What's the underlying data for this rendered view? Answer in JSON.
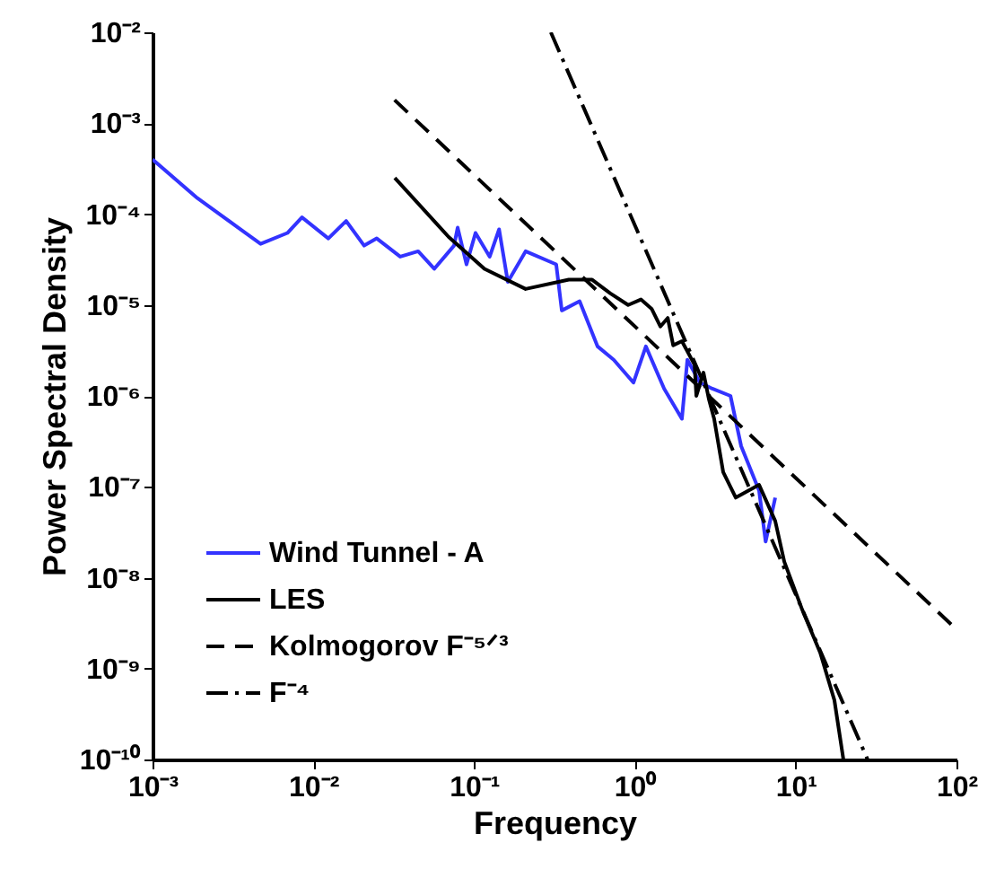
{
  "chart_data": {
    "type": "line",
    "xlabel": "Frequency",
    "ylabel": "Power Spectral Density",
    "log": "xy",
    "grid": false,
    "legend": "bottom left",
    "marker": "none",
    "xlim": [
      0.001,
      100
    ],
    "ylim": [
      1e-10,
      0.01
    ],
    "xticks": [
      {
        "value": 0.001,
        "label": "10⁻³"
      },
      {
        "value": 0.01,
        "label": "10⁻²"
      },
      {
        "value": 0.1,
        "label": "10⁻¹"
      },
      {
        "value": 1,
        "label": "10⁰"
      },
      {
        "value": 10,
        "label": "10¹"
      },
      {
        "value": 100,
        "label": "10²"
      }
    ],
    "yticks": [
      {
        "value": 1e-10,
        "label": "10⁻¹⁰"
      },
      {
        "value": 1e-09,
        "label": "10⁻⁹"
      },
      {
        "value": 1e-08,
        "label": "10⁻⁸"
      },
      {
        "value": 1e-07,
        "label": "10⁻⁷"
      },
      {
        "value": 1e-06,
        "label": "10⁻⁶"
      },
      {
        "value": 1e-05,
        "label": "10⁻⁵"
      },
      {
        "value": 0.0001,
        "label": "10⁻⁴"
      },
      {
        "value": 0.001,
        "label": "10⁻³"
      },
      {
        "value": 0.01,
        "label": "10⁻²"
      }
    ],
    "series": [
      {
        "name": "Wind Tunnel - A",
        "color": "#3333ff",
        "line_style": "solid",
        "x": [
          0.001,
          0.0019,
          0.0047,
          0.0069,
          0.0085,
          0.0124,
          0.016,
          0.0207,
          0.0248,
          0.0347,
          0.0449,
          0.0565,
          0.075,
          0.079,
          0.0897,
          0.102,
          0.125,
          0.143,
          0.162,
          0.209,
          0.324,
          0.351,
          0.453,
          0.586,
          0.738,
          0.98,
          1.17,
          1.52,
          1.96,
          2.12,
          2.54,
          3.03,
          3.93,
          4.58,
          5.92,
          6.5,
          7.46
        ],
        "values": [
          0.0004,
          0.00015,
          4.7e-05,
          6.2e-05,
          9.2e-05,
          5.4e-05,
          8.4e-05,
          4.5e-05,
          5.4e-05,
          3.4e-05,
          3.9e-05,
          2.5e-05,
          4.5e-05,
          7.1e-05,
          2.8e-05,
          6.2e-05,
          3.4e-05,
          6.8e-05,
          1.8e-05,
          3.9e-05,
          2.8e-05,
          8.7e-06,
          1.1e-05,
          3.5e-06,
          2.5e-06,
          1.4e-06,
          3.5e-06,
          1.2e-06,
          5.6e-07,
          2.5e-06,
          1.4e-06,
          1.2e-06,
          1e-06,
          2.8e-07,
          9.1e-08,
          2.5e-08,
          7.6e-08
        ]
      },
      {
        "name": "LES",
        "color": "#000000",
        "line_style": "solid",
        "x": [
          0.0321,
          0.0695,
          0.116,
          0.209,
          0.388,
          0.542,
          0.701,
          0.908,
          1.09,
          1.27,
          1.44,
          1.6,
          1.73,
          1.96,
          2.35,
          2.41,
          2.67,
          2.88,
          3.11,
          3.54,
          4.24,
          5.92,
          7.46,
          8.49,
          11.0,
          14.2,
          17.4,
          19.8
        ],
        "values": [
          0.00025,
          5.6e-05,
          2.5e-05,
          1.5e-05,
          1.9e-05,
          1.9e-05,
          1.35e-05,
          1e-05,
          1.15e-05,
          9.1e-06,
          5.8e-06,
          7.2e-06,
          3.6e-06,
          4e-06,
          2.2e-06,
          1e-06,
          1.8e-06,
          9.3e-07,
          5.6e-07,
          1.45e-07,
          7.6e-08,
          1.05e-07,
          4.2e-08,
          1.5e-08,
          4.4e-09,
          1.5e-09,
          4.5e-10,
          1e-10
        ]
      },
      {
        "name": "Kolmogorov F⁻⁵ᐟ³",
        "color": "#000000",
        "line_style": "dashed",
        "x": [
          0.032,
          100
        ],
        "values": [
          0.0018,
          2.7e-09
        ]
      },
      {
        "name": "F⁻⁴",
        "color": "#000000",
        "line_style": "dashdot",
        "x": [
          0.3,
          28
        ],
        "values": [
          0.01,
          1e-10
        ]
      }
    ]
  }
}
